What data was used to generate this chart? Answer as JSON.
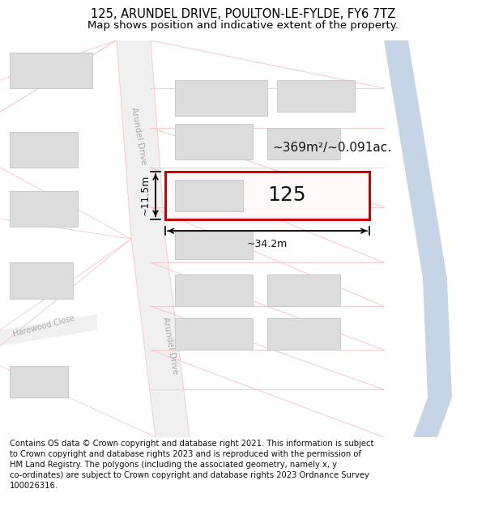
{
  "title_line1": "125, ARUNDEL DRIVE, POULTON-LE-FYLDE, FY6 7TZ",
  "title_line2": "Map shows position and indicative extent of the property.",
  "footer_text": "Contains OS data © Crown copyright and database right 2021. This information is subject to Crown copyright and database rights 2023 and is reproduced with the permission of HM Land Registry. The polygons (including the associated geometry, namely x, y co-ordinates) are subject to Crown copyright and database rights 2023 Ordnance Survey 100026316.",
  "area_label": "~369m²/~0.091ac.",
  "width_label": "~34.2m",
  "height_label": "~11.5m",
  "number_label": "125",
  "bg_color": "#ffffff",
  "map_bg": "#faf5f5",
  "road_color_light": "#f5cccc",
  "building_fill": "#dcdcdc",
  "building_edge": "#c8c8c8",
  "highlight_edge": "#cc0000",
  "blue_road_color": "#c8d8e8",
  "title_fontsize": 10.5,
  "subtitle_fontsize": 9.5,
  "footer_fontsize": 7.2
}
